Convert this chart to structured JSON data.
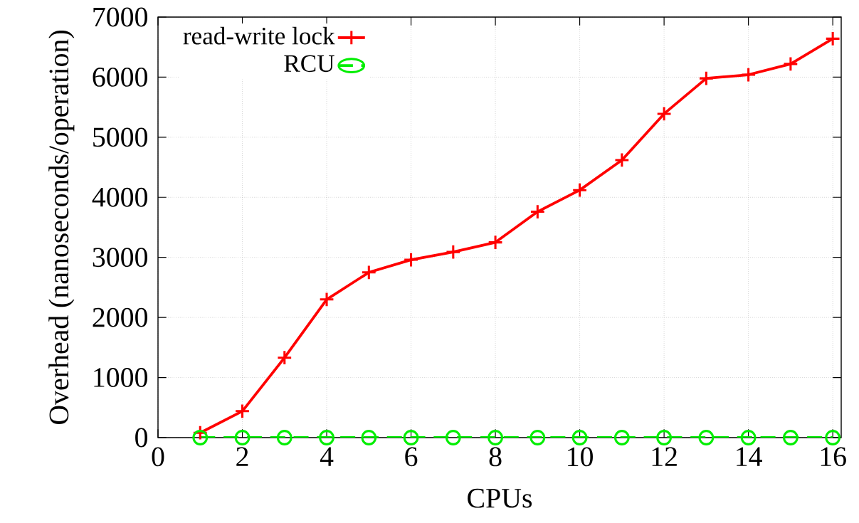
{
  "chart_data": {
    "type": "line",
    "xlabel": "CPUs",
    "ylabel": "Overhead (nanoseconds/operation)",
    "x": [
      1,
      2,
      3,
      4,
      5,
      6,
      7,
      8,
      9,
      10,
      11,
      12,
      13,
      14,
      15,
      16
    ],
    "series": [
      {
        "name": "read-write lock",
        "color": "#ff0000",
        "marker": "cross",
        "line_style": "solid",
        "values": [
          80,
          440,
          1330,
          2300,
          2750,
          2960,
          3090,
          3250,
          3760,
          4120,
          4620,
          5390,
          5980,
          6040,
          6220,
          6640
        ]
      },
      {
        "name": "RCU",
        "color": "#00ee00",
        "marker": "circle",
        "line_style": "dashed",
        "values": [
          0,
          0,
          0,
          0,
          0,
          0,
          0,
          0,
          0,
          0,
          0,
          0,
          0,
          0,
          0,
          0
        ]
      }
    ],
    "xlim": [
      0,
      16.2
    ],
    "ylim": [
      0,
      7000
    ],
    "xticks": [
      0,
      2,
      4,
      6,
      8,
      10,
      12,
      14,
      16
    ],
    "yticks": [
      0,
      1000,
      2000,
      3000,
      4000,
      5000,
      6000,
      7000
    ],
    "grid": true,
    "legend": "top left"
  }
}
